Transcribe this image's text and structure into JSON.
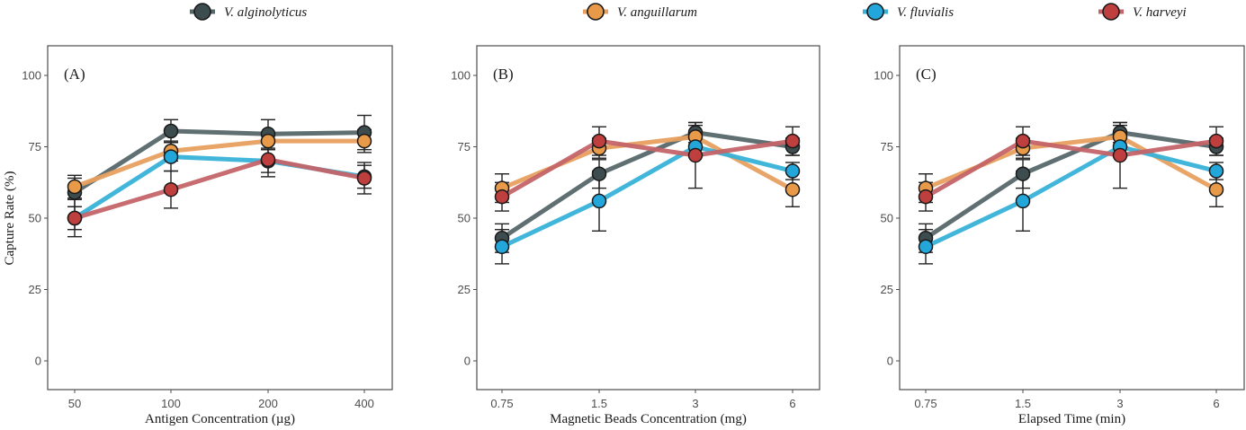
{
  "chart_data": {
    "type": "line",
    "legend": {
      "position": "top",
      "entries": [
        {
          "name": "V. alginolyticus",
          "color": "#3d4c4f",
          "line_color": "#56676a"
        },
        {
          "name": "V. anguillarum",
          "color": "#e89a48",
          "line_color": "#e8a060"
        },
        {
          "name": "V. fluvialis",
          "color": "#23a6d9",
          "line_color": "#38b2d8"
        },
        {
          "name": "V. harveyi",
          "color": "#bf3e3e",
          "line_color": "#c46468"
        }
      ]
    },
    "shared_ylabel": "Capture Rate (%)",
    "panels": [
      {
        "label": "(A)",
        "xlabel": "Antigen Concentration (µg)",
        "categories": [
          "50",
          "100",
          "200",
          "400"
        ],
        "ylim": [
          -10,
          110
        ],
        "yticks": [
          0,
          25,
          50,
          75,
          100
        ],
        "grid": false,
        "series": [
          {
            "name": "V. alginolyticus",
            "values": [
              59,
              80.5,
              79.5,
              80
            ],
            "errors": [
              5,
              4,
              5,
              6
            ]
          },
          {
            "name": "V. anguillarum",
            "values": [
              61,
              73.5,
              77,
              77
            ],
            "errors": [
              4,
              3.5,
              3,
              4
            ]
          },
          {
            "name": "V. fluvialis",
            "values": [
              50,
              71.5,
              70,
              64.5
            ],
            "errors": [
              4,
              5,
              4,
              4
            ]
          },
          {
            "name": "V. harveyi",
            "values": [
              50,
              60,
              70.5,
              64
            ],
            "errors": [
              6.5,
              6.5,
              6,
              5.5
            ]
          }
        ]
      },
      {
        "label": "(B)",
        "xlabel": "Magnetic Beads Concentration (mg)",
        "categories": [
          "0.75",
          "1.5",
          "3",
          "6"
        ],
        "ylim": [
          -10,
          110
        ],
        "yticks": [
          0,
          25,
          50,
          75,
          100
        ],
        "grid": false,
        "series": [
          {
            "name": "V. alginolyticus",
            "values": [
              43,
              65.5,
              80,
              75
            ],
            "errors": [
              5,
              5,
              3.5,
              3
            ]
          },
          {
            "name": "V. anguillarum",
            "values": [
              60.5,
              74.5,
              78.5,
              60
            ],
            "errors": [
              5,
              3.5,
              4,
              6
            ]
          },
          {
            "name": "V. fluvialis",
            "values": [
              40,
              56,
              75,
              66.5
            ],
            "errors": [
              6,
              10.5,
              3,
              3
            ]
          },
          {
            "name": "V. harveyi",
            "values": [
              57.5,
              77,
              72,
              77
            ],
            "errors": [
              5,
              5,
              11.5,
              5
            ]
          }
        ]
      },
      {
        "label": "(C)",
        "xlabel": "Elapsed Time (min)",
        "categories": [
          "0.75",
          "1.5",
          "3",
          "6"
        ],
        "ylim": [
          -10,
          110
        ],
        "yticks": [
          0,
          25,
          50,
          75,
          100
        ],
        "grid": false,
        "series": [
          {
            "name": "V. alginolyticus",
            "values": [
              43,
              65.5,
              80,
              75
            ],
            "errors": [
              5,
              5,
              3.5,
              3
            ]
          },
          {
            "name": "V. anguillarum",
            "values": [
              60.5,
              74.5,
              78.5,
              60
            ],
            "errors": [
              5,
              3.5,
              4,
              6
            ]
          },
          {
            "name": "V. fluvialis",
            "values": [
              40,
              56,
              75,
              66.5
            ],
            "errors": [
              6,
              10.5,
              3,
              3
            ]
          },
          {
            "name": "V. harveyi",
            "values": [
              57.5,
              77,
              72,
              77
            ],
            "errors": [
              5,
              5,
              11.5,
              5
            ]
          }
        ]
      }
    ]
  }
}
